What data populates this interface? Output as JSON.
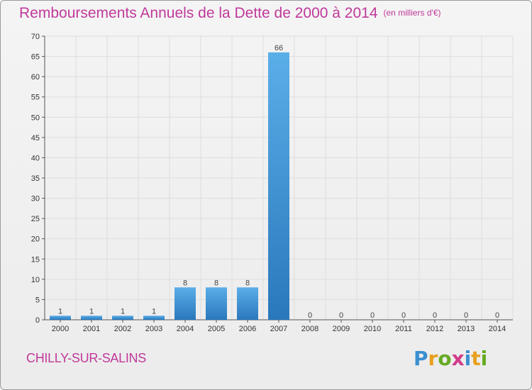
{
  "header": {
    "title": "Remboursements Annuels de la Dette de 2000 à 2014",
    "unit": "(en milliers d'€)"
  },
  "footer": {
    "commune": "CHILLY-SUR-SALINS",
    "logo_letters": [
      "P",
      "r",
      "o",
      "x",
      "i",
      "t",
      "i"
    ]
  },
  "colors": {
    "title": "#c0399a",
    "bar_top": "#5aaee8",
    "bar_bottom": "#2a78bc"
  },
  "chart_data": {
    "type": "bar",
    "title": "Remboursements Annuels de la Dette de 2000 à 2014",
    "xlabel": "",
    "ylabel": "",
    "categories": [
      "2000",
      "2001",
      "2002",
      "2003",
      "2004",
      "2005",
      "2006",
      "2007",
      "2008",
      "2009",
      "2010",
      "2011",
      "2012",
      "2013",
      "2014"
    ],
    "values": [
      1,
      1,
      1,
      1,
      8,
      8,
      8,
      66,
      0,
      0,
      0,
      0,
      0,
      0,
      0
    ],
    "ylim": [
      0,
      70
    ],
    "yticks": [
      0,
      5,
      10,
      15,
      20,
      25,
      30,
      35,
      40,
      45,
      50,
      55,
      60,
      65,
      70
    ],
    "grid": true
  }
}
